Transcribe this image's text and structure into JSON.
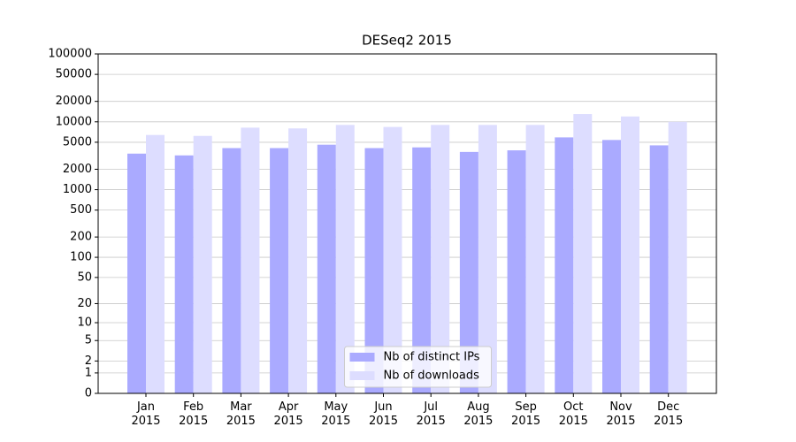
{
  "chart_data": {
    "type": "bar",
    "title": "DESeq2 2015",
    "categories": [
      "Jan\n2015",
      "Feb\n2015",
      "Mar\n2015",
      "Apr\n2015",
      "May\n2015",
      "Jun\n2015",
      "Jul\n2015",
      "Aug\n2015",
      "Sep\n2015",
      "Oct\n2015",
      "Nov\n2015",
      "Dec\n2015"
    ],
    "series": [
      {
        "name": "Nb of distinct IPs",
        "color": "#aaaaff",
        "values": [
          3400,
          3200,
          4100,
          4100,
          4600,
          4100,
          4200,
          3600,
          3800,
          5900,
          5400,
          4500
        ]
      },
      {
        "name": "Nb of downloads",
        "color": "#ddddff",
        "values": [
          6400,
          6200,
          8200,
          8000,
          9000,
          8400,
          9000,
          9000,
          9000,
          13000,
          12000,
          10000
        ]
      }
    ],
    "yscale": "log",
    "ylim": [
      0,
      100000
    ],
    "yticks": [
      0,
      1,
      2,
      5,
      10,
      20,
      50,
      100,
      200,
      500,
      1000,
      2000,
      5000,
      10000,
      20000,
      50000,
      100000
    ],
    "grid": true,
    "legend": "lower center"
  }
}
